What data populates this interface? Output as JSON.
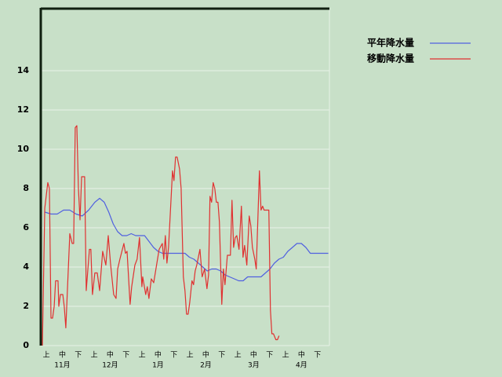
{
  "chart_data": {
    "type": "line",
    "xlim": [
      0,
      181
    ],
    "ylim": [
      0,
      17.2
    ],
    "yticks": [
      0,
      2,
      4,
      6,
      8,
      10,
      12,
      14
    ],
    "xticks": [
      {
        "value": 3.5,
        "label": "上"
      },
      {
        "value": 13.5,
        "label": "中"
      },
      {
        "value": 23.5,
        "label": "下"
      },
      {
        "value": 33.5,
        "label": "上"
      },
      {
        "value": 43.5,
        "label": "中"
      },
      {
        "value": 53.5,
        "label": "下"
      },
      {
        "value": 63.5,
        "label": "上"
      },
      {
        "value": 73.5,
        "label": "中"
      },
      {
        "value": 83.5,
        "label": "下"
      },
      {
        "value": 93.5,
        "label": "上"
      },
      {
        "value": 103.5,
        "label": "中"
      },
      {
        "value": 113.5,
        "label": "下"
      },
      {
        "value": 123.5,
        "label": "上"
      },
      {
        "value": 133.5,
        "label": "中"
      },
      {
        "value": 143.5,
        "label": "下"
      },
      {
        "value": 153.5,
        "label": "上"
      },
      {
        "value": 163.5,
        "label": "中"
      },
      {
        "value": 173.5,
        "label": "下"
      }
    ],
    "month_ticks": [
      {
        "value": 13.5,
        "label": "11月"
      },
      {
        "value": 43.5,
        "label": "12月"
      },
      {
        "value": 73.5,
        "label": "1月"
      },
      {
        "value": 103.5,
        "label": "2月"
      },
      {
        "value": 133.5,
        "label": "3月"
      },
      {
        "value": 163.5,
        "label": "4月"
      }
    ],
    "grid": true,
    "legend": "right",
    "series": [
      {
        "name": "平年降水量",
        "color": "#5060e0",
        "x": [
          2.5,
          6.4,
          10.3,
          14.3,
          18.2,
          22.1,
          26.0,
          30.0,
          33.9,
          36.9,
          39.8,
          42.6,
          45.4,
          48.2,
          51.0,
          53.9,
          56.7,
          59.5,
          62.3,
          65.1,
          67.9,
          70.7,
          73.5,
          76.3,
          79.1,
          81.9,
          84.8,
          87.6,
          90.4,
          93.2,
          96.0,
          98.8,
          101.6,
          104.4,
          107.2,
          110.0,
          112.8,
          115.6,
          118.4,
          121.3,
          124.1,
          126.9,
          129.7,
          132.5,
          135.3,
          138.1,
          140.9,
          143.7,
          146.5,
          149.3,
          152.1,
          154.9,
          157.8,
          160.6,
          163.4,
          166.2,
          169.0,
          171.8,
          174.6,
          177.4,
          180.3
        ],
        "values": [
          6.8,
          6.7,
          6.7,
          6.9,
          6.9,
          6.7,
          6.6,
          6.9,
          7.3,
          7.5,
          7.3,
          6.8,
          6.2,
          5.8,
          5.6,
          5.6,
          5.7,
          5.6,
          5.6,
          5.6,
          5.3,
          5.0,
          4.8,
          4.7,
          4.7,
          4.7,
          4.7,
          4.7,
          4.7,
          4.5,
          4.4,
          4.2,
          4.0,
          3.8,
          3.9,
          3.9,
          3.8,
          3.6,
          3.5,
          3.4,
          3.3,
          3.3,
          3.5,
          3.5,
          3.5,
          3.5,
          3.7,
          3.9,
          4.2,
          4.4,
          4.5,
          4.8,
          5.0,
          5.2,
          5.2,
          5.0,
          4.7,
          4.7,
          4.7,
          4.7,
          4.7
        ]
      },
      {
        "name": "移動降水量",
        "color": "#e03030",
        "x": [
          1.0,
          2.5,
          4.4,
          5.4,
          6.4,
          7.4,
          8.4,
          9.3,
          10.8,
          11.3,
          12.3,
          13.8,
          14.7,
          15.7,
          17.2,
          18.2,
          19.7,
          20.6,
          21.6,
          22.6,
          23.6,
          24.6,
          25.6,
          27.5,
          28.5,
          30.5,
          31.4,
          32.4,
          33.9,
          35.4,
          36.9,
          38.8,
          40.8,
          42.3,
          43.7,
          45.7,
          47.2,
          48.2,
          49.6,
          52.1,
          53.1,
          54.1,
          56.0,
          57.0,
          59.0,
          60.4,
          61.9,
          63.4,
          63.9,
          65.8,
          66.8,
          67.8,
          69.3,
          70.8,
          72.2,
          74.2,
          76.2,
          77.1,
          78.1,
          79.1,
          80.1,
          82.6,
          83.5,
          84.5,
          85.5,
          87.0,
          88.0,
          89.4,
          90.4,
          91.4,
          92.4,
          93.4,
          94.8,
          95.8,
          96.8,
          97.8,
          99.8,
          101.2,
          102.7,
          104.2,
          105.2,
          106.1,
          107.1,
          108.1,
          109.1,
          110.1,
          111.1,
          112.0,
          113.5,
          114.5,
          115.5,
          117.0,
          118.9,
          119.9,
          120.9,
          121.9,
          122.9,
          124.3,
          125.8,
          126.8,
          127.8,
          129.2,
          130.7,
          131.7,
          132.7,
          134.2,
          135.1,
          137.1,
          138.1,
          139.1,
          140.0,
          143.0,
          144.0,
          144.9,
          145.9,
          147.4,
          148.4,
          149.4
        ],
        "values": [
          0,
          7.0,
          8.3,
          8.0,
          1.4,
          1.4,
          2.0,
          3.3,
          3.3,
          2.0,
          2.6,
          2.6,
          2.0,
          0.9,
          3.8,
          5.7,
          5.2,
          5.2,
          11.1,
          11.2,
          8.0,
          6.4,
          8.6,
          8.6,
          2.8,
          4.9,
          4.9,
          2.6,
          3.7,
          3.7,
          2.8,
          4.8,
          4.1,
          5.6,
          4.2,
          2.6,
          2.4,
          3.9,
          4.4,
          5.2,
          4.7,
          4.8,
          2.1,
          3.0,
          4.1,
          4.4,
          5.5,
          3.0,
          3.5,
          2.6,
          3.0,
          2.4,
          3.4,
          3.2,
          3.9,
          4.9,
          5.2,
          4.4,
          5.6,
          4.2,
          5.0,
          8.9,
          8.4,
          9.6,
          9.6,
          9.0,
          8.0,
          3.5,
          2.8,
          1.6,
          1.6,
          2.2,
          3.3,
          3.1,
          3.8,
          4.1,
          4.9,
          3.5,
          3.9,
          2.9,
          3.6,
          7.6,
          7.3,
          8.3,
          8.0,
          7.3,
          7.3,
          6.3,
          2.1,
          3.9,
          3.1,
          4.6,
          4.6,
          7.4,
          5.0,
          5.5,
          5.6,
          4.9,
          7.1,
          4.5,
          5.1,
          4.1,
          6.6,
          6.1,
          5.0,
          4.4,
          3.9,
          8.9,
          6.9,
          7.1,
          6.9,
          6.9,
          1.8,
          0.6,
          0.6,
          0.3,
          0.3,
          0.5
        ]
      }
    ]
  }
}
